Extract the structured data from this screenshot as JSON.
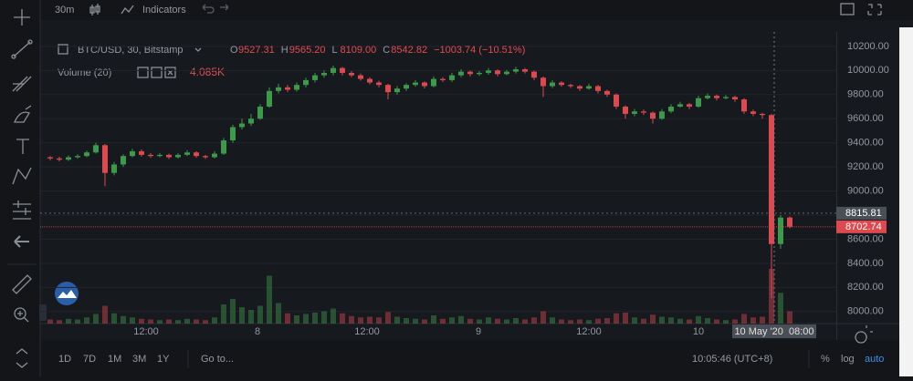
{
  "toolbar": {
    "interval": "30m",
    "indicators": "Indicators"
  },
  "legend": {
    "symbol": "BTC/USD, 30, Bitstamp",
    "ohlc": [
      {
        "key": "O",
        "value": "9527.31"
      },
      {
        "key": "H",
        "value": "9565.20"
      },
      {
        "key": "L",
        "value": "8109.00"
      },
      {
        "key": "C",
        "value": "8542.82"
      }
    ],
    "change": "−1003.74 (−10.51%)",
    "volume_label": "Volume (20)",
    "volume_value": "4.085K"
  },
  "chart_data": {
    "type": "candlestick",
    "up_color": "#3d9a4a",
    "down_color": "#dc4a4f",
    "ylim": [
      7900,
      10320
    ],
    "yticks": [
      {
        "value": 8000,
        "label": "8000.00"
      },
      {
        "value": 8200,
        "label": "8200.00"
      },
      {
        "value": 8400,
        "label": "8400.00"
      },
      {
        "value": 8600,
        "label": "8600.00"
      },
      {
        "value": 8800,
        "label": "8800.00"
      },
      {
        "value": 9000,
        "label": "9000.00"
      },
      {
        "value": 9200,
        "label": "9200.00"
      },
      {
        "value": 9400,
        "label": "9400.00"
      },
      {
        "value": 9600,
        "label": "9600.00"
      },
      {
        "value": 9800,
        "label": "9800.00"
      },
      {
        "value": 10000,
        "label": "10000.00"
      },
      {
        "value": 10200,
        "label": "10200.00"
      }
    ],
    "price_labels": [
      {
        "value": 8815.81,
        "label": "8815.81"
      },
      {
        "value": 8702.74,
        "label": "8702.74"
      }
    ],
    "time_labels": [
      "12:00",
      "8",
      "12:00",
      "9",
      "12:00",
      "10"
    ],
    "crosshair_time": "10 May '20  08:00",
    "candles": [
      [
        9280,
        9290,
        9255,
        9270,
        600
      ],
      [
        9270,
        9285,
        9245,
        9260,
        500
      ],
      [
        9260,
        9295,
        9250,
        9280,
        700
      ],
      [
        9280,
        9305,
        9270,
        9290,
        600
      ],
      [
        9290,
        9335,
        9280,
        9320,
        900
      ],
      [
        9320,
        9400,
        9310,
        9380,
        1400
      ],
      [
        9380,
        9390,
        9040,
        9150,
        2600
      ],
      [
        9150,
        9240,
        9130,
        9220,
        1500
      ],
      [
        9220,
        9305,
        9200,
        9290,
        1100
      ],
      [
        9290,
        9350,
        9280,
        9330,
        900
      ],
      [
        9330,
        9345,
        9285,
        9300,
        700
      ],
      [
        9300,
        9315,
        9275,
        9290,
        600
      ],
      [
        9290,
        9315,
        9280,
        9300,
        500
      ],
      [
        9300,
        9310,
        9265,
        9280,
        600
      ],
      [
        9280,
        9315,
        9270,
        9300,
        500
      ],
      [
        9300,
        9340,
        9290,
        9320,
        700
      ],
      [
        9320,
        9330,
        9275,
        9290,
        600
      ],
      [
        9290,
        9300,
        9265,
        9280,
        500
      ],
      [
        9280,
        9330,
        9270,
        9310,
        900
      ],
      [
        9310,
        9440,
        9300,
        9420,
        2800
      ],
      [
        9420,
        9550,
        9400,
        9530,
        3600
      ],
      [
        9530,
        9600,
        9510,
        9560,
        2400
      ],
      [
        9560,
        9640,
        9540,
        9600,
        2000
      ],
      [
        9600,
        9720,
        9590,
        9700,
        2600
      ],
      [
        9700,
        9860,
        9690,
        9830,
        7000
      ],
      [
        9830,
        9890,
        9810,
        9860,
        3000
      ],
      [
        9860,
        9880,
        9820,
        9840,
        1500
      ],
      [
        9840,
        9900,
        9825,
        9880,
        1200
      ],
      [
        9880,
        9940,
        9860,
        9920,
        1400
      ],
      [
        9920,
        9980,
        9900,
        9960,
        1600
      ],
      [
        9960,
        10000,
        9940,
        9980,
        1800
      ],
      [
        9980,
        10040,
        9960,
        10020,
        2200
      ],
      [
        10020,
        10030,
        9960,
        9980,
        1500
      ],
      [
        9980,
        9995,
        9945,
        9960,
        1100
      ],
      [
        9960,
        9975,
        9915,
        9930,
        900
      ],
      [
        9930,
        9945,
        9885,
        9900,
        1000
      ],
      [
        9900,
        9915,
        9860,
        9880,
        900
      ],
      [
        9880,
        9890,
        9760,
        9820,
        1700
      ],
      [
        9820,
        9870,
        9800,
        9850,
        1000
      ],
      [
        9850,
        9895,
        9830,
        9880,
        800
      ],
      [
        9880,
        9920,
        9865,
        9900,
        700
      ],
      [
        9900,
        9910,
        9850,
        9870,
        600
      ],
      [
        9870,
        9950,
        9860,
        9930,
        1200
      ],
      [
        9930,
        9945,
        9905,
        9920,
        700
      ],
      [
        9920,
        9980,
        9905,
        9960,
        900
      ],
      [
        9960,
        10010,
        9945,
        9990,
        1100
      ],
      [
        9990,
        10000,
        9950,
        9970,
        700
      ],
      [
        9970,
        9995,
        9955,
        9980,
        600
      ],
      [
        9980,
        10020,
        9965,
        10000,
        900
      ],
      [
        10000,
        10010,
        9950,
        9970,
        700
      ],
      [
        9970,
        10005,
        9960,
        9990,
        600
      ],
      [
        9990,
        10030,
        9975,
        10010,
        800
      ],
      [
        10010,
        10020,
        9975,
        9990,
        600
      ],
      [
        9990,
        10000,
        9920,
        9940,
        900
      ],
      [
        9940,
        9950,
        9780,
        9870,
        1800
      ],
      [
        9870,
        9920,
        9855,
        9900,
        900
      ],
      [
        9900,
        9910,
        9865,
        9880,
        600
      ],
      [
        9880,
        9890,
        9855,
        9870,
        500
      ],
      [
        9870,
        9880,
        9830,
        9850,
        600
      ],
      [
        9850,
        9890,
        9840,
        9870,
        500
      ],
      [
        9870,
        9880,
        9810,
        9830,
        700
      ],
      [
        9830,
        9840,
        9780,
        9800,
        800
      ],
      [
        9800,
        9810,
        9680,
        9700,
        1500
      ],
      [
        9700,
        9710,
        9600,
        9640,
        1600
      ],
      [
        9640,
        9680,
        9620,
        9660,
        900
      ],
      [
        9660,
        9675,
        9630,
        9650,
        700
      ],
      [
        9650,
        9660,
        9560,
        9600,
        1300
      ],
      [
        9600,
        9680,
        9590,
        9660,
        1000
      ],
      [
        9660,
        9720,
        9645,
        9700,
        900
      ],
      [
        9700,
        9740,
        9690,
        9720,
        700
      ],
      [
        9720,
        9730,
        9680,
        9700,
        600
      ],
      [
        9700,
        9790,
        9690,
        9770,
        1100
      ],
      [
        9770,
        9810,
        9760,
        9790,
        800
      ],
      [
        9790,
        9800,
        9750,
        9770,
        600
      ],
      [
        9770,
        9795,
        9760,
        9780,
        500
      ],
      [
        9780,
        9790,
        9740,
        9760,
        600
      ],
      [
        9760,
        9770,
        9640,
        9660,
        1400
      ],
      [
        9660,
        9675,
        9620,
        9640,
        900
      ],
      [
        9640,
        9650,
        9600,
        9630,
        1000
      ],
      [
        9630,
        9640,
        8110,
        8560,
        8000
      ],
      [
        8560,
        8800,
        8520,
        8780,
        4500
      ],
      [
        8780,
        8790,
        8690,
        8703,
        1800
      ]
    ]
  },
  "bottom_bar": {
    "ranges": [
      "1D",
      "7D",
      "1M",
      "3M",
      "1Y"
    ],
    "goto": "Go to...",
    "clock": "10:05:46 (UTC+8)",
    "percent": "%",
    "log": "log",
    "auto": "auto"
  }
}
